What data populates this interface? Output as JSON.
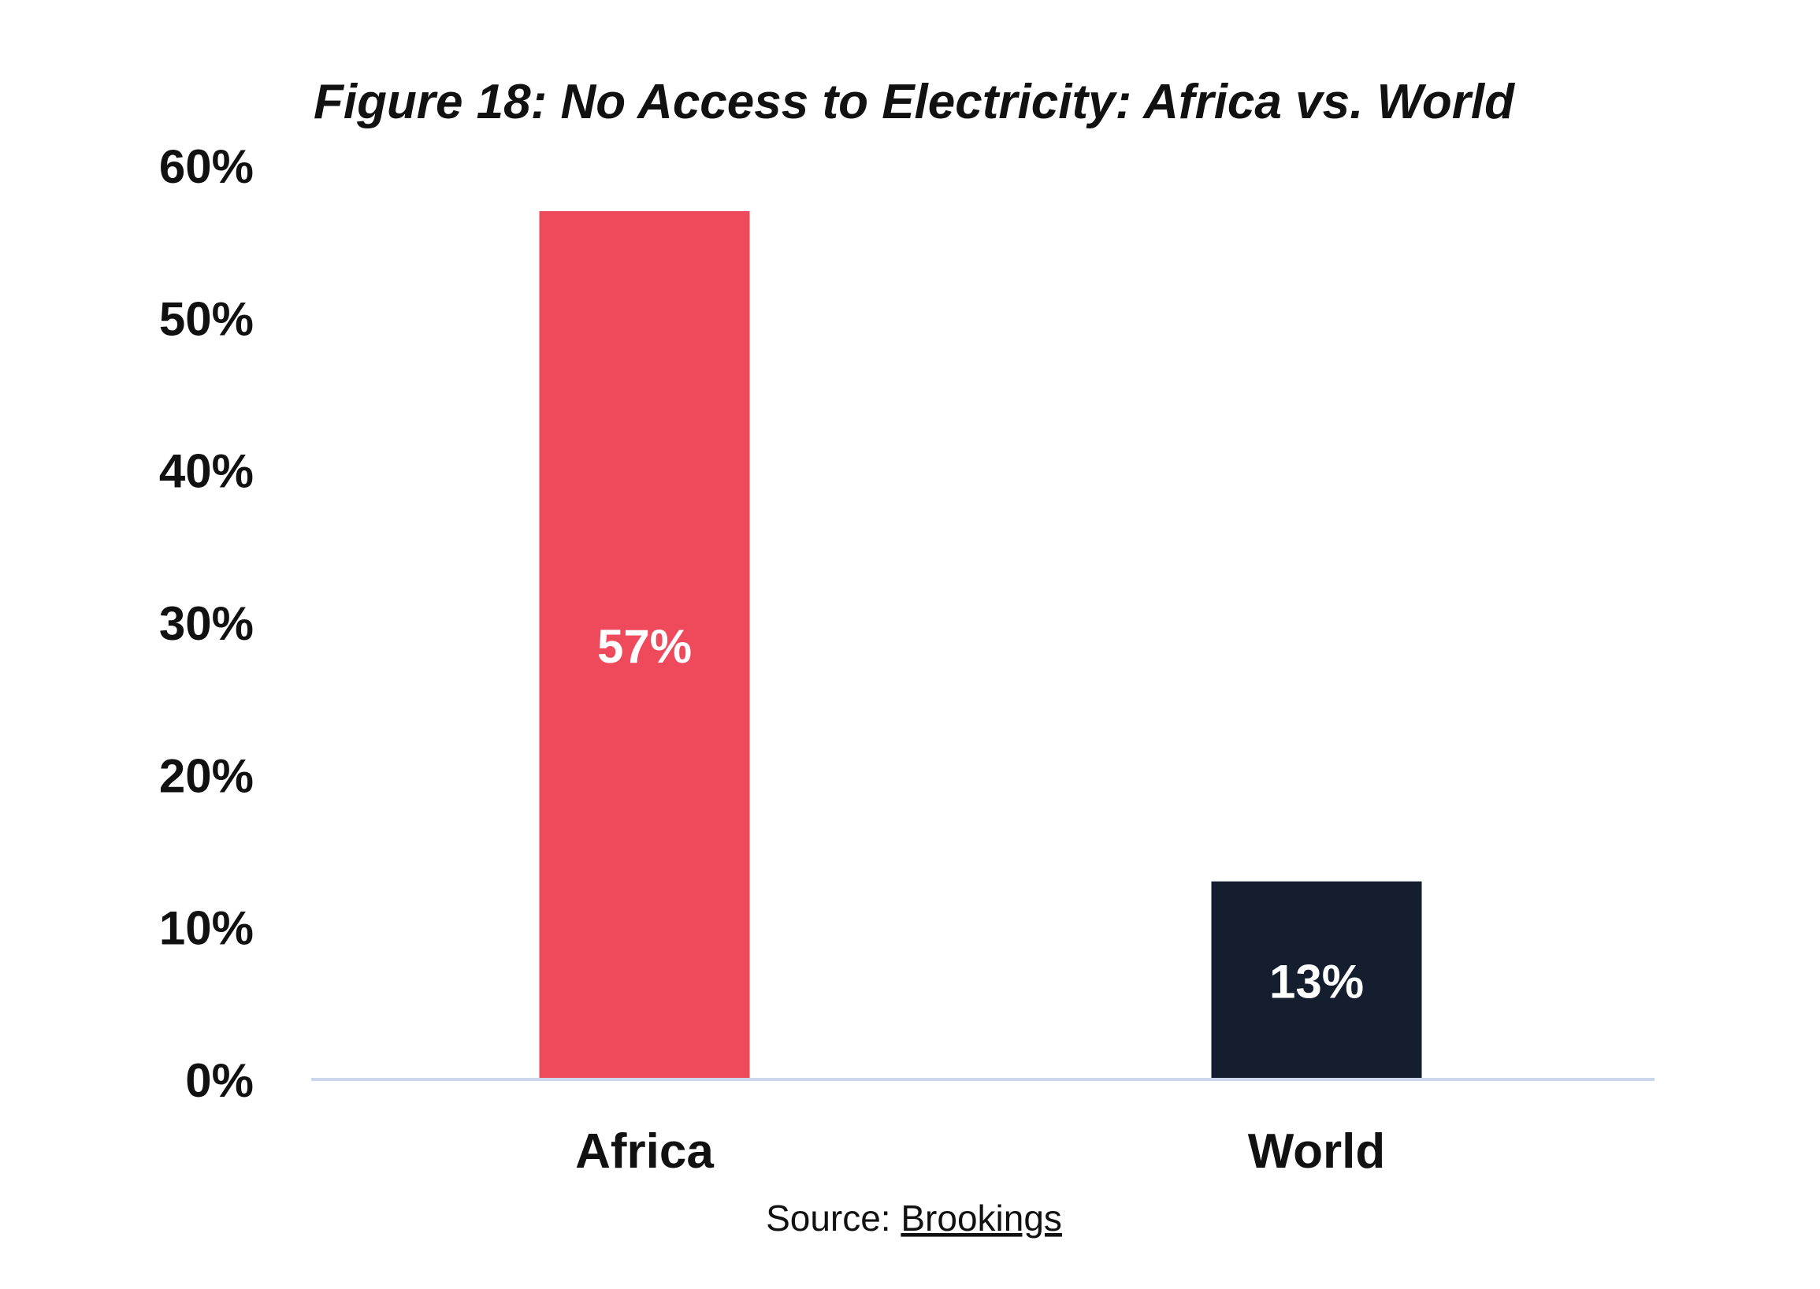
{
  "chart_data": {
    "type": "bar",
    "title": "Figure 18: No Access to Electricity: Africa vs. World",
    "categories": [
      "Africa",
      "World"
    ],
    "values": [
      57,
      13
    ],
    "data_labels": [
      "57%",
      "13%"
    ],
    "bar_colors": [
      "#ef4a5c",
      "#141e2f"
    ],
    "axis_line_color": "#c9d8ee",
    "ylim": [
      0,
      60
    ],
    "yticks": [
      0,
      10,
      20,
      30,
      40,
      50,
      60
    ],
    "ytick_labels": [
      "0%",
      "10%",
      "20%",
      "30%",
      "40%",
      "50%",
      "60%"
    ],
    "xlabel": "",
    "ylabel": "",
    "grid": false,
    "legend": "none"
  },
  "source": {
    "prefix": "Source: ",
    "link_text": "Brookings"
  }
}
